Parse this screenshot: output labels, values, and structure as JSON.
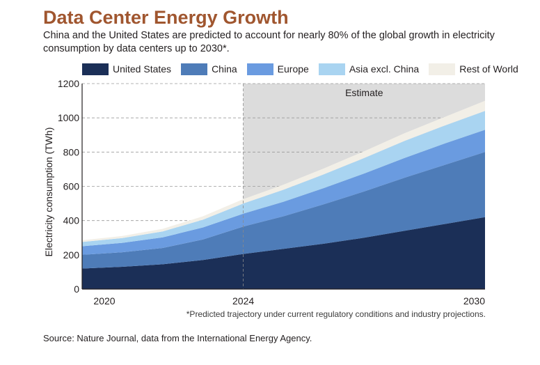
{
  "header": {
    "title": "Data Center Energy Growth",
    "subtitle": "China and the United States are predicted to account for nearly 80% of the global growth in electricity consumption by data centers up to 2030*."
  },
  "footnote": "*Predicted trajectory under current regulatory conditions and industry projections.",
  "source": "Source: Nature Journal, data from the International Energy Agency.",
  "colors": {
    "united_states": "#1b2f57",
    "china": "#4e7cb8",
    "europe": "#6a9be0",
    "asia_excl_china": "#a9d4f1",
    "rest_of_world": "#f2efe7",
    "estimate_shade": "#dcdcdc",
    "title": "#a0562f"
  },
  "chart_data": {
    "type": "area",
    "stacked": true,
    "title": "Data Center Energy Growth",
    "ylabel": "Electricity consumption (TWh)",
    "xlabel": "",
    "x": [
      2020,
      2021,
      2022,
      2023,
      2024,
      2025,
      2026,
      2027,
      2028,
      2029,
      2030
    ],
    "x_ticks": [
      "2020",
      "2024",
      "2030"
    ],
    "xlim": [
      2020,
      2030
    ],
    "ylim": [
      0,
      1200
    ],
    "y_ticks": [
      0,
      200,
      400,
      600,
      800,
      1000,
      1200
    ],
    "grid": "horizontal dashed",
    "legend_position": "top",
    "estimate_region": {
      "label": "Estimate",
      "from": 2024,
      "to": 2030
    },
    "series": [
      {
        "name": "United States",
        "color": "#1b2f57",
        "values": [
          120,
          130,
          145,
          170,
          205,
          235,
          265,
          300,
          340,
          380,
          420
        ]
      },
      {
        "name": "China",
        "color": "#4e7cb8",
        "values": [
          80,
          85,
          95,
          120,
          160,
          190,
          230,
          270,
          310,
          345,
          380
        ]
      },
      {
        "name": "Europe",
        "color": "#6a9be0",
        "values": [
          50,
          55,
          62,
          70,
          75,
          85,
          95,
          105,
          115,
          125,
          130
        ]
      },
      {
        "name": "Asia excl. China",
        "color": "#a9d4f1",
        "values": [
          25,
          28,
          35,
          45,
          60,
          70,
          80,
          90,
          100,
          105,
          110
        ]
      },
      {
        "name": "Rest of World",
        "color": "#f2efe7",
        "values": [
          10,
          12,
          15,
          20,
          25,
          30,
          35,
          40,
          45,
          50,
          60
        ]
      }
    ]
  }
}
